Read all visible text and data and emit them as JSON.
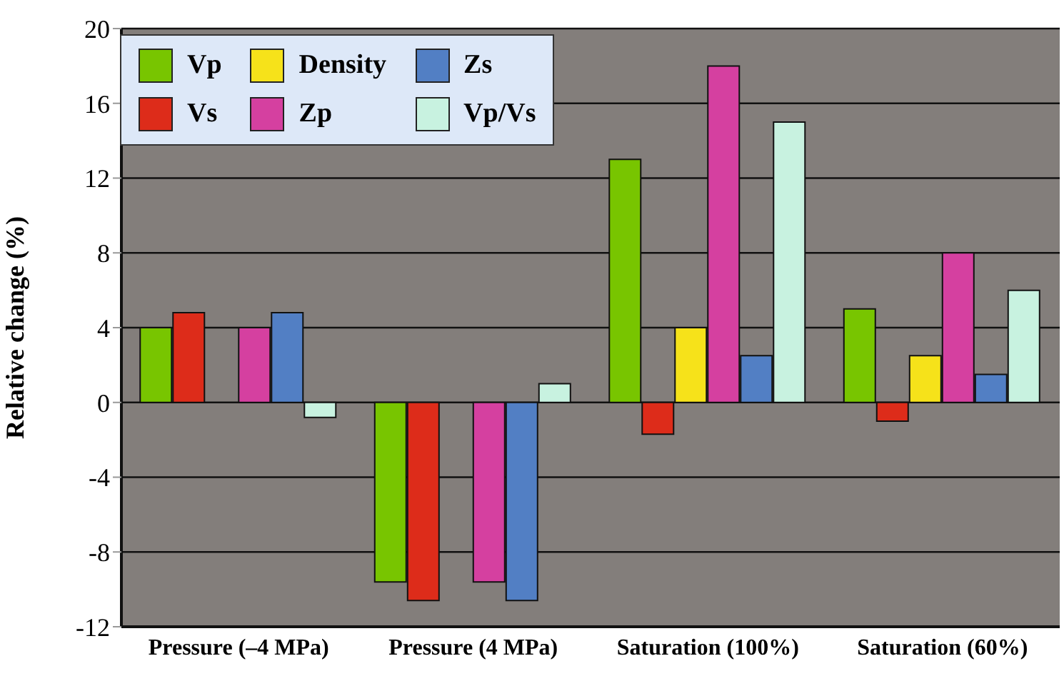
{
  "chart_data": {
    "type": "bar",
    "ylabel": "Relative change (%)",
    "categories": [
      "Pressure (–4 MPa)",
      "Pressure (4 MPa)",
      "Saturation (100%)",
      "Saturation (60%)"
    ],
    "series": [
      {
        "name": "Vp",
        "color": "#78c500",
        "values": [
          4,
          -9.6,
          13,
          5
        ]
      },
      {
        "name": "Vs",
        "color": "#dd2c1a",
        "values": [
          4.8,
          -10.6,
          -1.7,
          -1
        ]
      },
      {
        "name": "Density",
        "color": "#f6e21a",
        "values": [
          0,
          0,
          4,
          2.5
        ]
      },
      {
        "name": "Zp",
        "color": "#d540a0",
        "values": [
          4,
          -9.6,
          18,
          8
        ]
      },
      {
        "name": "Zs",
        "color": "#527fc4",
        "values": [
          4.8,
          -10.6,
          2.5,
          1.5
        ]
      },
      {
        "name": "Vp/Vs",
        "color": "#c8f2e0",
        "values": [
          -0.8,
          1,
          15,
          6
        ]
      }
    ],
    "ylim": [
      -12,
      20
    ],
    "yticks": [
      -12,
      -8,
      -4,
      0,
      4,
      8,
      12,
      16,
      20
    ],
    "grid": "y",
    "legend": "top left"
  }
}
